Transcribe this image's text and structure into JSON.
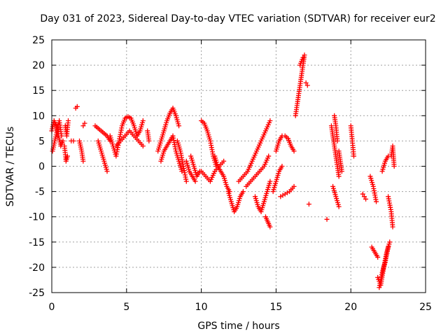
{
  "chart_data": {
    "type": "scatter",
    "title": "Day 031 of 2023, Sidereal Day-to-day VTEC variation (SDTVAR) for receiver eur2",
    "xlabel": "GPS time / hours",
    "ylabel": "SDTVAR / TECUs",
    "xlim": [
      0,
      25
    ],
    "ylim": [
      -25,
      25
    ],
    "xticks": [
      0,
      5,
      10,
      15,
      20,
      25
    ],
    "yticks": [
      -25,
      -20,
      -15,
      -10,
      -5,
      0,
      5,
      10,
      15,
      20,
      25
    ],
    "grid": true,
    "marker": "plus",
    "color": "#ff0000",
    "series": [
      {
        "name": "SDTVAR",
        "segments": [
          {
            "x": [
              0.0,
              0.15,
              0.3,
              0.45,
              0.6,
              0.75
            ],
            "y": [
              7,
              9,
              8,
              6,
              4,
              5
            ]
          },
          {
            "x": [
              0.05,
              0.2,
              0.35,
              0.5,
              0.65
            ],
            "y": [
              3,
              5,
              7,
              9,
              6
            ]
          },
          {
            "x": [
              0.9,
              1.0,
              1.1
            ],
            "y": [
              8,
              6,
              9
            ]
          },
          {
            "x": [
              0.85,
              0.95,
              1.05
            ],
            "y": [
              4,
              1,
              2
            ]
          },
          {
            "x": [
              1.3,
              1.45
            ],
            "y": [
              5,
              5
            ]
          },
          {
            "x": [
              1.6,
              1.7
            ],
            "y": [
              11.5,
              11.8
            ]
          },
          {
            "x": [
              1.85,
              2.0,
              2.1
            ],
            "y": [
              5,
              3,
              1
            ]
          },
          {
            "x": [
              2.1,
              2.2
            ],
            "y": [
              8,
              8.5
            ]
          },
          {
            "x": [
              2.9,
              3.1,
              3.3,
              3.5,
              3.7,
              3.9
            ],
            "y": [
              8,
              7.5,
              7,
              6.5,
              6,
              5
            ]
          },
          {
            "x": [
              3.1,
              3.3,
              3.5,
              3.7
            ],
            "y": [
              5,
              3,
              1,
              -1
            ]
          },
          {
            "x": [
              3.9,
              4.1,
              4.3,
              4.5,
              4.7,
              4.9,
              5.1,
              5.3,
              5.5,
              5.7,
              5.9,
              6.1
            ],
            "y": [
              6,
              4,
              2,
              5,
              8,
              9.5,
              9.8,
              9.5,
              8,
              6,
              7,
              9
            ]
          },
          {
            "x": [
              4.3,
              4.6,
              4.9,
              5.2,
              5.5,
              5.8,
              6.1
            ],
            "y": [
              4,
              5,
              6,
              7,
              6,
              5,
              4
            ]
          },
          {
            "x": [
              6.4,
              6.5
            ],
            "y": [
              7,
              5
            ]
          },
          {
            "x": [
              7.1,
              7.3,
              7.5,
              7.7,
              7.9,
              8.1,
              8.3,
              8.5
            ],
            "y": [
              3,
              5,
              7,
              9,
              10.5,
              11.5,
              10,
              8
            ]
          },
          {
            "x": [
              7.3,
              7.5,
              7.7,
              7.9,
              8.1,
              8.3,
              8.5,
              8.7
            ],
            "y": [
              1,
              3,
              4,
              5,
              6,
              3,
              1,
              -1
            ]
          },
          {
            "x": [
              8.4,
              8.6,
              8.8,
              9.0
            ],
            "y": [
              5,
              3,
              0,
              -3
            ]
          },
          {
            "x": [
              9.0,
              9.2,
              9.4,
              9.6
            ],
            "y": [
              1,
              -1,
              -2,
              -3
            ]
          },
          {
            "x": [
              9.3,
              9.5,
              9.7,
              9.9
            ],
            "y": [
              2,
              0,
              -2,
              -1
            ]
          },
          {
            "x": [
              10.0,
              10.2,
              10.4,
              10.6,
              10.8,
              11.0
            ],
            "y": [
              9,
              8.5,
              7,
              5,
              2,
              0
            ]
          },
          {
            "x": [
              10.0,
              10.3,
              10.6,
              10.9,
              11.2,
              11.5
            ],
            "y": [
              -1,
              -2,
              -3,
              -1,
              0,
              1
            ]
          },
          {
            "x": [
              10.9,
              11.1,
              11.3,
              11.5,
              11.7,
              11.9
            ],
            "y": [
              2,
              0,
              -1,
              -2,
              -4,
              -5
            ]
          },
          {
            "x": [
              11.8,
              12.0,
              12.2,
              12.4,
              12.6,
              12.8
            ],
            "y": [
              -5,
              -7,
              -9,
              -8,
              -6,
              -5
            ]
          },
          {
            "x": [
              12.5,
              12.8,
              13.1,
              13.4,
              13.7,
              14.0,
              14.3,
              14.6
            ],
            "y": [
              -3,
              -2,
              -1,
              1,
              3,
              5,
              7,
              9
            ]
          },
          {
            "x": [
              13.0,
              13.3,
              13.6,
              13.9,
              14.2,
              14.5
            ],
            "y": [
              -4,
              -3,
              -2,
              -1,
              0,
              2
            ]
          },
          {
            "x": [
              13.6,
              13.8,
              14.0,
              14.2,
              14.4,
              14.6
            ],
            "y": [
              -6,
              -8,
              -9,
              -7,
              -5,
              -3
            ]
          },
          {
            "x": [
              14.3,
              14.45,
              14.6
            ],
            "y": [
              -10,
              -11,
              -12
            ]
          },
          {
            "x": [
              14.8,
              15.0,
              15.2,
              15.4
            ],
            "y": [
              -5,
              -3,
              -1,
              0
            ]
          },
          {
            "x": [
              15.0,
              15.2,
              15.4,
              15.6,
              15.8,
              16.0,
              16.2
            ],
            "y": [
              3,
              5,
              6,
              6,
              5.5,
              4,
              3
            ]
          },
          {
            "x": [
              15.3,
              15.6,
              15.9,
              16.2
            ],
            "y": [
              -6,
              -5.5,
              -5,
              -4
            ]
          },
          {
            "x": [
              16.3,
              16.5,
              16.7,
              16.9
            ],
            "y": [
              10,
              14,
              18,
              22
            ]
          },
          {
            "x": [
              16.6,
              16.8
            ],
            "y": [
              20,
              21.5
            ]
          },
          {
            "x": [
              17.0,
              17.1
            ],
            "y": [
              16.5,
              16
            ]
          },
          {
            "x": [
              17.2
            ],
            "y": [
              -7.5
            ]
          },
          {
            "x": [
              18.4
            ],
            "y": [
              -10.5
            ]
          },
          {
            "x": [
              18.7,
              18.8,
              18.9,
              19.0,
              19.1,
              19.2
            ],
            "y": [
              8,
              6,
              4,
              2,
              0,
              -2
            ]
          },
          {
            "x": [
              18.9,
              19.0,
              19.1
            ],
            "y": [
              10,
              8,
              5
            ]
          },
          {
            "x": [
              18.8,
              19.0,
              19.2
            ],
            "y": [
              -4,
              -6,
              -8
            ]
          },
          {
            "x": [
              19.2,
              19.3,
              19.4
            ],
            "y": [
              3,
              1,
              -1
            ]
          },
          {
            "x": [
              20.0,
              20.1,
              20.2
            ],
            "y": [
              8,
              5,
              2
            ]
          },
          {
            "x": [
              20.8,
              20.9,
              21.0
            ],
            "y": [
              -5.5,
              -6,
              -6.5
            ]
          },
          {
            "x": [
              21.3,
              21.5,
              21.7
            ],
            "y": [
              -2,
              -4,
              -7
            ]
          },
          {
            "x": [
              21.4,
              21.6,
              21.8
            ],
            "y": [
              -16,
              -17,
              -18
            ]
          },
          {
            "x": [
              21.8,
              22.0,
              22.2,
              22.4,
              22.6
            ],
            "y": [
              -22,
              -23.5,
              -20,
              -17,
              -15
            ]
          },
          {
            "x": [
              21.9,
              22.1,
              22.3,
              22.5
            ],
            "y": [
              -24,
              -21,
              -19,
              -16
            ]
          },
          {
            "x": [
              22.1,
              22.3,
              22.5
            ],
            "y": [
              -1,
              1,
              2
            ]
          },
          {
            "x": [
              22.7,
              22.8,
              22.9
            ],
            "y": [
              2,
              4,
              0
            ]
          },
          {
            "x": [
              22.5,
              22.7,
              22.8
            ],
            "y": [
              -6,
              -9,
              -12
            ]
          }
        ]
      }
    ]
  }
}
